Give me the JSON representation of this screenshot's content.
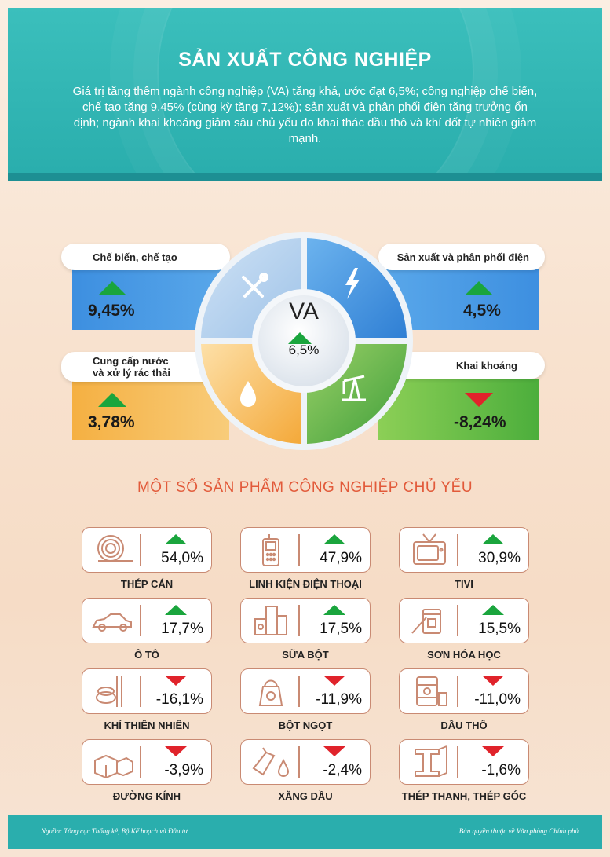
{
  "header": {
    "title": "SẢN XUẤT CÔNG NGHIỆP",
    "description": "Giá trị tăng thêm ngành công nghiệp (VA) tăng khá, ước đạt 6,5%; công nghiệp chế biến, chế tạo tăng 9,45% (cùng kỳ tăng 7,12%); sản xuất và phân phối điện tăng trưởng ổn định; ngành khai khoáng giảm sâu chủ yếu do khai thác dầu thô và khí đốt tự nhiên giảm mạnh."
  },
  "va": {
    "label": "VA",
    "value": "6,5%",
    "trend": "up"
  },
  "sectors": [
    {
      "label": "Chế biến, chế tạo",
      "value": "9,45%",
      "trend": "up",
      "icon": "tools-icon",
      "color": "#3d8fe0"
    },
    {
      "label": "Sản xuất và phân phối điện",
      "value": "4,5%",
      "trend": "up",
      "icon": "lightning-icon",
      "color": "#3d8fe0"
    },
    {
      "label_line1": "Cung cấp nước",
      "label_line2": "và xử lý rác thải",
      "value": "3,78%",
      "trend": "up",
      "icon": "water-drop-icon",
      "color": "#f5b042"
    },
    {
      "label": "Khai khoáng",
      "value": "-8,24%",
      "trend": "down",
      "icon": "oil-pump-icon",
      "color": "#4cae3c"
    }
  ],
  "products_title": "MỘT SỐ SẢN PHẨM CÔNG NGHIỆP CHỦ YẾU",
  "products": [
    {
      "name": "THÉP CÁN",
      "value": "54,0%",
      "trend": "up",
      "icon": "steel-coil-icon"
    },
    {
      "name": "LINH KIỆN ĐIỆN THOẠI",
      "value": "47,9%",
      "trend": "up",
      "icon": "phone-icon"
    },
    {
      "name": "TIVI",
      "value": "30,9%",
      "trend": "up",
      "icon": "tv-icon"
    },
    {
      "name": "Ô TÔ",
      "value": "17,7%",
      "trend": "up",
      "icon": "car-icon"
    },
    {
      "name": "SỮA BỘT",
      "value": "17,5%",
      "trend": "up",
      "icon": "milk-powder-icon"
    },
    {
      "name": "SƠN HÓA HỌC",
      "value": "15,5%",
      "trend": "up",
      "icon": "paint-icon"
    },
    {
      "name": "KHÍ THIÊN NHIÊN",
      "value": "-16,1%",
      "trend": "down",
      "icon": "gas-pipe-icon"
    },
    {
      "name": "BỘT NGỌT",
      "value": "-11,9%",
      "trend": "down",
      "icon": "msg-bag-icon"
    },
    {
      "name": "DẦU THÔ",
      "value": "-11,0%",
      "trend": "down",
      "icon": "oil-barrel-icon"
    },
    {
      "name": "ĐƯỜNG KÍNH",
      "value": "-3,9%",
      "trend": "down",
      "icon": "sugar-cube-icon"
    },
    {
      "name": "XĂNG DẦU",
      "value": "-2,4%",
      "trend": "down",
      "icon": "fuel-nozzle-icon"
    },
    {
      "name": "THÉP THANH, THÉP GÓC",
      "value": "-1,6%",
      "trend": "down",
      "icon": "steel-beam-icon"
    }
  ],
  "footer": {
    "source": "Nguồn: Tổng cục Thống kê, Bộ Kế hoạch và Đầu tư",
    "copyright": "Bản quyền thuộc về Văn phòng Chính phủ"
  }
}
